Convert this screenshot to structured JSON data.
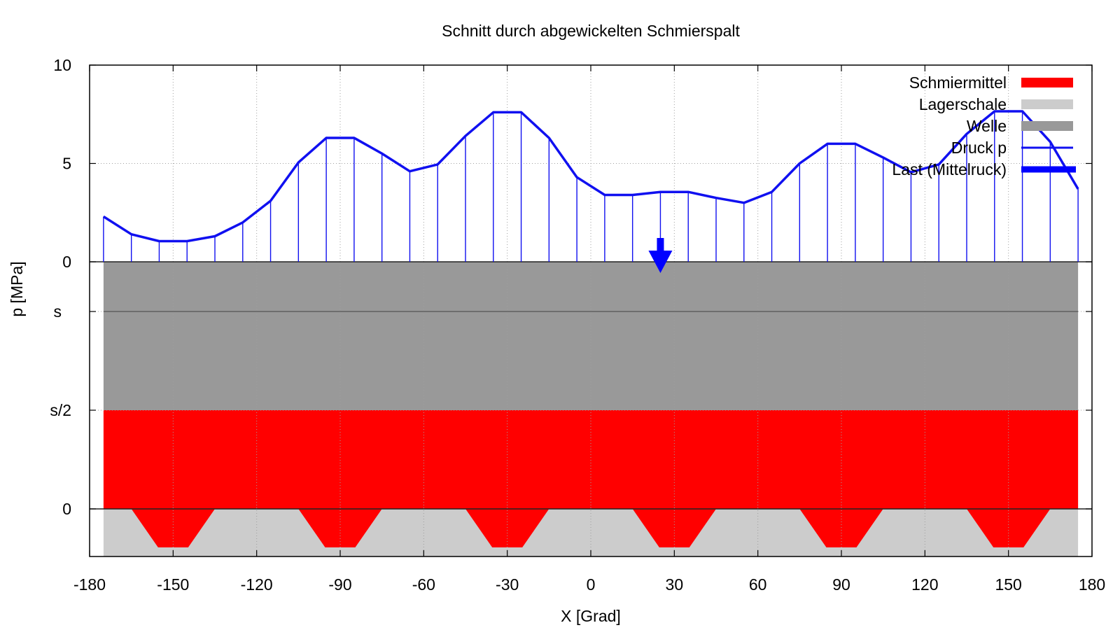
{
  "chart_data": {
    "type": "line",
    "title": "Schnitt durch abgewickelten Schmierspalt",
    "xlabel": "X [Grad]",
    "ylabel": "p [MPa]",
    "xlim": [
      -180,
      180
    ],
    "ylim": [
      0,
      10
    ],
    "x_ticks": [
      "-180",
      "-150",
      "-120",
      "-90",
      "-60",
      "-30",
      "0",
      "30",
      "60",
      "90",
      "120",
      "150",
      "180"
    ],
    "y_ticks_pressure": [
      "0",
      "5",
      "10"
    ],
    "y_ticks_gap": [
      "0",
      "s/2",
      "s"
    ],
    "grid": true,
    "legend_position": "top-right",
    "colors": {
      "schmiermittel": "#ff0000",
      "lagerschale": "#cccccc",
      "welle": "#999999",
      "druck": "#1010f0",
      "last": "#0000ff"
    },
    "legend": [
      {
        "label": "Schmiermittel",
        "key": "schmiermittel",
        "style": "box"
      },
      {
        "label": "Lagerschale",
        "key": "lagerschale",
        "style": "box"
      },
      {
        "label": "Welle",
        "key": "welle",
        "style": "box"
      },
      {
        "label": "Druck p",
        "key": "druck",
        "style": "line"
      },
      {
        "label": "Last (Mittelruck)",
        "key": "last",
        "style": "thickline"
      }
    ],
    "series": [
      {
        "name": "Druck p",
        "x": [
          -175,
          -165,
          -155,
          -145,
          -135,
          -125,
          -115,
          -105,
          -95,
          -85,
          -75,
          -65,
          -55,
          -45,
          -35,
          -25,
          -15,
          -5,
          5,
          15,
          25,
          35,
          45,
          55,
          65,
          75,
          85,
          95,
          105,
          115,
          125,
          135,
          145,
          155,
          165,
          175
        ],
        "y": [
          2.3,
          1.4,
          1.05,
          1.05,
          1.3,
          2.0,
          3.1,
          5.05,
          6.3,
          6.3,
          5.5,
          4.6,
          4.95,
          6.4,
          7.6,
          7.6,
          6.3,
          4.3,
          3.4,
          3.4,
          3.55,
          3.55,
          3.25,
          3.0,
          3.55,
          5.0,
          6.0,
          6.0,
          5.3,
          4.55,
          4.95,
          6.5,
          7.65,
          7.65,
          6.1,
          3.7
        ]
      }
    ],
    "last_marker": {
      "name": "Last (Mittelruck)",
      "x": 25
    },
    "lager": {
      "x_from": -175,
      "x_to": 175
    },
    "pockets": [
      {
        "x_from": -165,
        "x_to": -135
      },
      {
        "x_from": -105,
        "x_to": -75
      },
      {
        "x_from": -45,
        "x_to": -15
      },
      {
        "x_from": 15,
        "x_to": 45
      },
      {
        "x_from": 75,
        "x_to": 105
      },
      {
        "x_from": 135,
        "x_to": 165
      }
    ]
  }
}
